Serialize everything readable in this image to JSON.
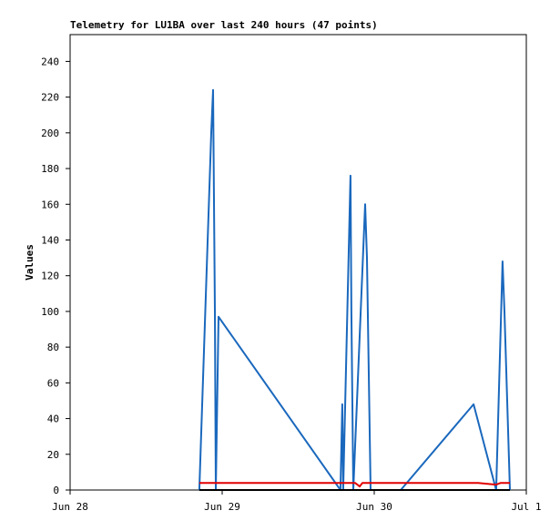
{
  "chart_data": {
    "type": "line",
    "title": "Telemetry for LU1BA over last 240 hours (47 points)",
    "ylabel": "Values",
    "xlim": [
      0,
      3
    ],
    "xticks": [
      {
        "value": 0,
        "label": "Jun 28"
      },
      {
        "value": 1,
        "label": "Jun 29"
      },
      {
        "value": 2,
        "label": "Jun 30"
      },
      {
        "value": 3,
        "label": "Jul 1"
      }
    ],
    "ylim": [
      0,
      255
    ],
    "yticks": [
      0,
      20,
      40,
      60,
      80,
      100,
      120,
      140,
      160,
      180,
      200,
      220,
      240
    ],
    "series": [
      {
        "color": "#1a68bd",
        "x": [
          0.85,
          0.928,
          0.94,
          0.952,
          0.958,
          0.976,
          1.778,
          1.79,
          1.796,
          1.844,
          1.85,
          1.862,
          1.94,
          1.952,
          1.976,
          2.174,
          2.653,
          2.802,
          2.844,
          2.856,
          2.892
        ],
        "values": [
          0,
          200,
          224,
          100,
          0,
          97,
          0,
          48,
          0,
          176,
          100,
          0,
          160,
          130,
          0,
          0,
          48,
          0,
          128,
          100,
          0
        ]
      },
      {
        "color": "#e00000",
        "x": [
          0.85,
          1.874,
          1.904,
          1.922,
          2.683,
          2.802,
          2.832,
          2.892
        ],
        "values": [
          4,
          4,
          2,
          4,
          4,
          3,
          4,
          4
        ]
      },
      {
        "color": "#000000",
        "x": [
          0.85,
          2.892
        ],
        "values": [
          0,
          0
        ]
      }
    ]
  }
}
